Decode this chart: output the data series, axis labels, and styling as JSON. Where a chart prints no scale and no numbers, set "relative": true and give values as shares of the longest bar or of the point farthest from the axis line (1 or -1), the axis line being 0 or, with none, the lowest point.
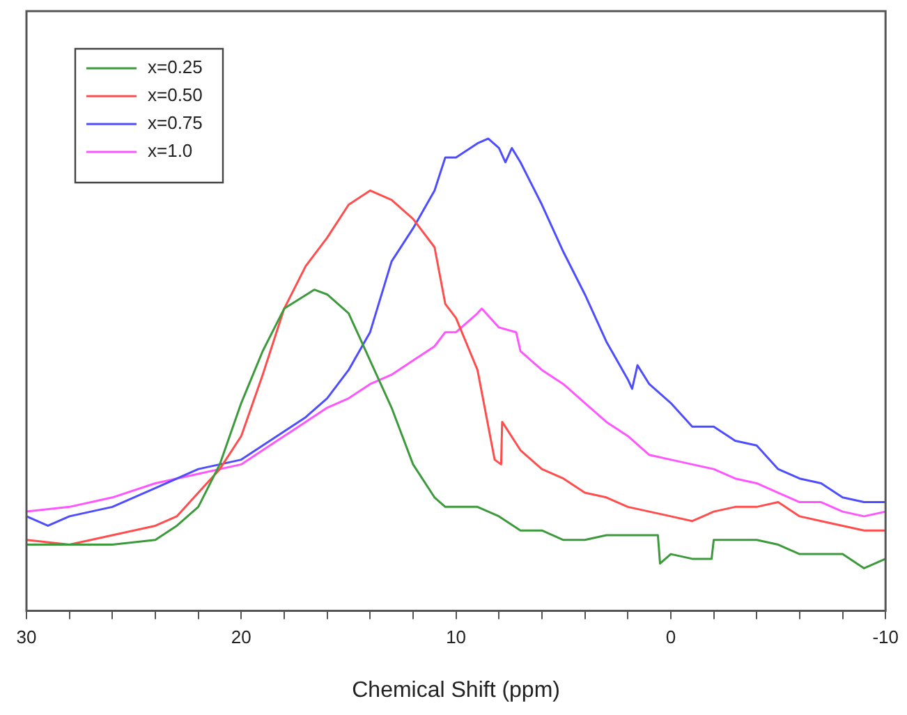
{
  "chart_data": {
    "type": "line",
    "xlabel": "Chemical Shift (ppm)",
    "relative": true,
    "tick_labels": "x",
    "legend": "top left",
    "grid": false,
    "marker": "none",
    "line_style": "solid",
    "xlim": [
      30,
      -10
    ],
    "xticks": [
      30,
      {
        "value": 28,
        "label": null
      },
      {
        "value": 26,
        "label": null
      },
      {
        "value": 24,
        "label": null
      },
      {
        "value": 22,
        "label": null
      },
      20,
      {
        "value": 18,
        "label": null
      },
      {
        "value": 16,
        "label": null
      },
      {
        "value": 14,
        "label": null
      },
      {
        "value": 12,
        "label": null
      },
      10,
      {
        "value": 8,
        "label": null
      },
      {
        "value": 6,
        "label": null
      },
      {
        "value": 4,
        "label": null
      },
      {
        "value": 2,
        "label": null
      },
      0,
      {
        "value": -2,
        "label": null
      },
      {
        "value": -4,
        "label": null
      },
      {
        "value": -6,
        "label": null
      },
      {
        "value": -8,
        "label": null
      },
      -10
    ],
    "series": [
      {
        "name": "x=0.25",
        "color": "#3c9a3c",
        "x": [
          30,
          28,
          26,
          24,
          23,
          22,
          21,
          20,
          19,
          18,
          16.6,
          16,
          15,
          14,
          13,
          12,
          11,
          10.5,
          10,
          9,
          8,
          7,
          6,
          5,
          4,
          3,
          2,
          1,
          0.6,
          0.5,
          0,
          -1,
          -1.9,
          -2,
          -3,
          -4,
          -5,
          -6,
          -7,
          -8,
          -9,
          -10
        ],
        "values": [
          0.14,
          0.14,
          0.14,
          0.15,
          0.18,
          0.22,
          0.31,
          0.44,
          0.55,
          0.64,
          0.68,
          0.67,
          0.63,
          0.53,
          0.43,
          0.31,
          0.24,
          0.22,
          0.22,
          0.22,
          0.2,
          0.17,
          0.17,
          0.15,
          0.15,
          0.16,
          0.16,
          0.16,
          0.16,
          0.1,
          0.12,
          0.11,
          0.11,
          0.15,
          0.15,
          0.15,
          0.14,
          0.12,
          0.12,
          0.12,
          0.09,
          0.11
        ]
      },
      {
        "name": "x=0.50",
        "color": "#ff4d4d",
        "x": [
          30,
          28,
          26,
          24,
          23,
          22,
          21,
          20,
          19,
          18,
          17,
          16,
          15,
          14,
          13,
          12,
          11,
          10.5,
          10,
          9,
          8.2,
          7.9,
          7.85,
          7,
          6,
          5,
          4,
          3,
          2,
          1,
          0,
          -1,
          -2,
          -3,
          -4,
          -5,
          -6,
          -7,
          -8,
          -9,
          -10
        ],
        "values": [
          0.15,
          0.14,
          0.16,
          0.18,
          0.2,
          0.25,
          0.3,
          0.37,
          0.5,
          0.64,
          0.73,
          0.79,
          0.86,
          0.89,
          0.87,
          0.83,
          0.77,
          0.65,
          0.62,
          0.51,
          0.32,
          0.31,
          0.4,
          0.34,
          0.3,
          0.28,
          0.25,
          0.24,
          0.22,
          0.21,
          0.2,
          0.19,
          0.21,
          0.22,
          0.22,
          0.23,
          0.2,
          0.19,
          0.18,
          0.17,
          0.17
        ]
      },
      {
        "name": "x=0.75",
        "color": "#4d4dff",
        "x": [
          30,
          29,
          28,
          26,
          24,
          22,
          21,
          20,
          19,
          18,
          17,
          16,
          15,
          14,
          13,
          12,
          11,
          10.5,
          10,
          9,
          8.5,
          8,
          7.7,
          7.4,
          7,
          6,
          5,
          4,
          3,
          2,
          1.8,
          1.55,
          1,
          0,
          -1,
          -2,
          -3,
          -4,
          -5,
          -6,
          -7,
          -8,
          -9,
          -10
        ],
        "values": [
          0.2,
          0.18,
          0.2,
          0.22,
          0.26,
          0.3,
          0.31,
          0.32,
          0.35,
          0.38,
          0.41,
          0.45,
          0.51,
          0.59,
          0.74,
          0.81,
          0.89,
          0.96,
          0.96,
          0.99,
          1,
          0.98,
          0.95,
          0.98,
          0.95,
          0.86,
          0.76,
          0.67,
          0.57,
          0.49,
          0.47,
          0.52,
          0.48,
          0.44,
          0.39,
          0.39,
          0.36,
          0.35,
          0.3,
          0.28,
          0.27,
          0.24,
          0.23,
          0.23
        ]
      },
      {
        "name": "x=1.0",
        "color": "#ff55ff",
        "x": [
          30,
          28,
          26,
          24,
          22,
          21,
          20,
          19,
          18,
          17,
          16,
          15,
          14,
          13,
          12,
          11,
          10.5,
          10,
          9,
          8.8,
          8,
          7.2,
          7,
          6,
          5,
          4,
          3,
          2,
          1,
          0,
          -1,
          -2,
          -3,
          -4,
          -5,
          -6,
          -7,
          -8,
          -9,
          -10
        ],
        "values": [
          0.21,
          0.22,
          0.24,
          0.27,
          0.29,
          0.3,
          0.31,
          0.34,
          0.37,
          0.4,
          0.43,
          0.45,
          0.48,
          0.5,
          0.53,
          0.56,
          0.59,
          0.59,
          0.63,
          0.64,
          0.6,
          0.59,
          0.55,
          0.51,
          0.48,
          0.44,
          0.4,
          0.37,
          0.33,
          0.32,
          0.31,
          0.3,
          0.28,
          0.27,
          0.25,
          0.23,
          0.23,
          0.21,
          0.2,
          0.21
        ]
      }
    ]
  }
}
